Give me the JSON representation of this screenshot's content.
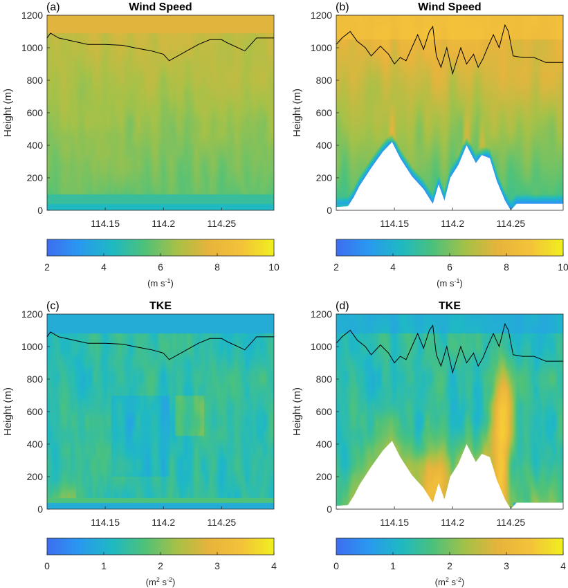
{
  "chart_data": [
    {
      "panel": "(a)",
      "title": "Wind Speed",
      "type": "heatmap",
      "field": "wind",
      "ylabel": "Height (m)",
      "ylim": [
        0,
        1200
      ],
      "yticks": [
        0,
        200,
        400,
        600,
        800,
        1000,
        1200
      ],
      "xlim": [
        114.1,
        114.295
      ],
      "xticks": [
        114.15,
        114.2,
        114.25
      ],
      "xtick_labels": [
        "114.15",
        "114.2",
        "114.25"
      ],
      "boundary_layer_height": {
        "x": [
          114.1,
          114.103,
          114.11,
          114.135,
          114.15,
          114.165,
          114.175,
          114.19,
          114.2,
          114.205,
          114.22,
          114.23,
          114.24,
          114.25,
          114.255,
          114.27,
          114.28,
          114.295
        ],
        "y": [
          1060,
          1090,
          1060,
          1020,
          1020,
          1015,
          1000,
          980,
          960,
          920,
          980,
          1020,
          1050,
          1050,
          1030,
          980,
          1060,
          1060
        ]
      },
      "terrain": null,
      "colorbar": {
        "min": 2,
        "max": 10,
        "ticks": [
          "2",
          "4",
          "6",
          "8",
          "10"
        ],
        "unit_base": "(m s",
        "unit_sup": "-1",
        "unit_tail": ")"
      }
    },
    {
      "panel": "(b)",
      "title": "Wind Speed",
      "type": "heatmap",
      "field": "wind",
      "ylabel": "Height (m)",
      "ylim": [
        0,
        1200
      ],
      "yticks": [
        0,
        200,
        400,
        600,
        800,
        1000,
        1200
      ],
      "xlim": [
        114.1,
        114.295
      ],
      "xticks": [
        114.15,
        114.2,
        114.25
      ],
      "xtick_labels": [
        "114.15",
        "114.2",
        "114.25"
      ],
      "boundary_layer_height": {
        "x": [
          114.1,
          114.105,
          114.112,
          114.118,
          114.125,
          114.13,
          114.138,
          114.145,
          114.15,
          114.155,
          114.16,
          114.165,
          114.17,
          114.175,
          114.18,
          114.183,
          114.186,
          114.19,
          114.195,
          114.2,
          114.207,
          114.212,
          114.218,
          114.222,
          114.226,
          114.23,
          114.235,
          114.24,
          114.245,
          114.248,
          114.252,
          114.26,
          114.27,
          114.28,
          114.295
        ],
        "y": [
          1020,
          1060,
          1100,
          1040,
          1000,
          950,
          1010,
          960,
          900,
          940,
          920,
          1000,
          1080,
          990,
          1100,
          1130,
          950,
          880,
          1000,
          840,
          1000,
          900,
          960,
          880,
          930,
          1000,
          1080,
          1000,
          1140,
          1100,
          950,
          940,
          940,
          910,
          910
        ]
      },
      "terrain": {
        "x": [
          114.1,
          114.1,
          114.11,
          114.115,
          114.12,
          114.13,
          114.14,
          114.148,
          114.155,
          114.165,
          114.175,
          114.183,
          114.188,
          114.193,
          114.198,
          114.205,
          114.212,
          114.22,
          114.225,
          114.232,
          114.238,
          114.245,
          114.25,
          114.255,
          114.295,
          114.295
        ],
        "y": [
          0,
          20,
          25,
          80,
          150,
          260,
          360,
          420,
          320,
          210,
          130,
          40,
          160,
          60,
          200,
          280,
          400,
          290,
          340,
          320,
          180,
          60,
          0,
          40,
          40,
          0
        ]
      },
      "colorbar": {
        "min": 2,
        "max": 10,
        "ticks": [
          "2",
          "4",
          "6",
          "8",
          "10"
        ],
        "unit_base": "(m s",
        "unit_sup": "-1",
        "unit_tail": ")"
      }
    },
    {
      "panel": "(c)",
      "title": "TKE",
      "type": "heatmap",
      "field": "tke_flat",
      "ylabel": "Height (m)",
      "ylim": [
        0,
        1200
      ],
      "yticks": [
        0,
        200,
        400,
        600,
        800,
        1000,
        1200
      ],
      "xlim": [
        114.1,
        114.295
      ],
      "xticks": [
        114.15,
        114.2,
        114.25
      ],
      "xtick_labels": [
        "114.15",
        "114.2",
        "114.25"
      ],
      "boundary_layer_height": {
        "x": [
          114.1,
          114.103,
          114.11,
          114.135,
          114.15,
          114.165,
          114.175,
          114.19,
          114.2,
          114.205,
          114.22,
          114.23,
          114.24,
          114.25,
          114.255,
          114.27,
          114.28,
          114.295
        ],
        "y": [
          1060,
          1090,
          1060,
          1020,
          1020,
          1015,
          1000,
          980,
          960,
          920,
          980,
          1020,
          1050,
          1050,
          1030,
          980,
          1060,
          1060
        ]
      },
      "terrain": null,
      "colorbar": {
        "min": 0,
        "max": 4,
        "ticks": [
          "0",
          "1",
          "2",
          "3",
          "4"
        ],
        "unit_base": "(m",
        "unit_sup": "2",
        "unit_mid": " s",
        "unit_sup2": "-2",
        "unit_tail": ")"
      }
    },
    {
      "panel": "(d)",
      "title": "TKE",
      "type": "heatmap",
      "field": "tke_terrain",
      "ylabel": "Height (m)",
      "ylim": [
        0,
        1200
      ],
      "yticks": [
        0,
        200,
        400,
        600,
        800,
        1000,
        1200
      ],
      "xlim": [
        114.1,
        114.295
      ],
      "xticks": [
        114.15,
        114.2,
        114.25
      ],
      "xtick_labels": [
        "114.15",
        "114.2",
        "114.25"
      ],
      "boundary_layer_height": {
        "x": [
          114.1,
          114.105,
          114.112,
          114.118,
          114.125,
          114.13,
          114.138,
          114.145,
          114.15,
          114.155,
          114.16,
          114.165,
          114.17,
          114.175,
          114.18,
          114.183,
          114.186,
          114.19,
          114.195,
          114.2,
          114.207,
          114.212,
          114.218,
          114.222,
          114.226,
          114.23,
          114.235,
          114.24,
          114.245,
          114.248,
          114.252,
          114.26,
          114.27,
          114.28,
          114.295
        ],
        "y": [
          1020,
          1060,
          1100,
          1040,
          1000,
          950,
          1010,
          960,
          900,
          940,
          920,
          1000,
          1080,
          990,
          1100,
          1130,
          950,
          880,
          1000,
          840,
          1000,
          900,
          960,
          880,
          930,
          1000,
          1080,
          1000,
          1140,
          1100,
          950,
          940,
          940,
          910,
          910
        ]
      },
      "terrain": {
        "x": [
          114.1,
          114.1,
          114.11,
          114.115,
          114.12,
          114.13,
          114.14,
          114.148,
          114.155,
          114.165,
          114.175,
          114.183,
          114.188,
          114.193,
          114.198,
          114.205,
          114.212,
          114.22,
          114.225,
          114.232,
          114.238,
          114.245,
          114.25,
          114.255,
          114.295,
          114.295
        ],
        "y": [
          0,
          20,
          25,
          80,
          150,
          260,
          360,
          420,
          320,
          210,
          130,
          40,
          160,
          60,
          200,
          280,
          400,
          290,
          340,
          320,
          180,
          60,
          0,
          40,
          40,
          0
        ]
      },
      "colorbar": {
        "min": 0,
        "max": 4,
        "ticks": [
          "0",
          "1",
          "2",
          "3",
          "4"
        ],
        "unit_base": "(m",
        "unit_sup": "2",
        "unit_mid": " s",
        "unit_sup2": "-2",
        "unit_tail": ")"
      }
    }
  ],
  "colormap": [
    "#3e6ff0",
    "#2a9af0",
    "#1fb9c4",
    "#4ec27a",
    "#a6c148",
    "#e8b43c",
    "#f5c33a",
    "#f0f01e"
  ]
}
